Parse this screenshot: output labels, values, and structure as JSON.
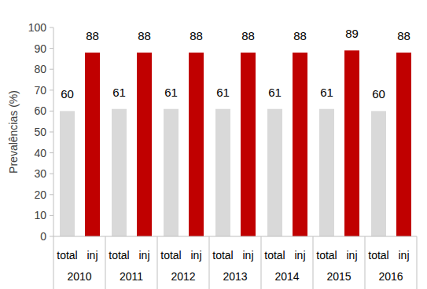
{
  "chart_data": {
    "type": "bar",
    "y_label": "Prevalências (%)",
    "categories": [
      "2010",
      "2011",
      "2012",
      "2013",
      "2014",
      "2015",
      "2016"
    ],
    "series": [
      {
        "name": "total",
        "color": "#d9d9d9",
        "values": [
          60,
          61,
          61,
          61,
          61,
          61,
          60
        ]
      },
      {
        "name": "inj",
        "color": "#c00000",
        "values": [
          88,
          88,
          88,
          88,
          88,
          89,
          88
        ]
      }
    ],
    "ylim": [
      0,
      100
    ],
    "yticks": [
      0,
      10,
      20,
      30,
      40,
      50,
      60,
      70,
      80,
      90,
      100
    ],
    "grid": false,
    "data_labels": true
  }
}
